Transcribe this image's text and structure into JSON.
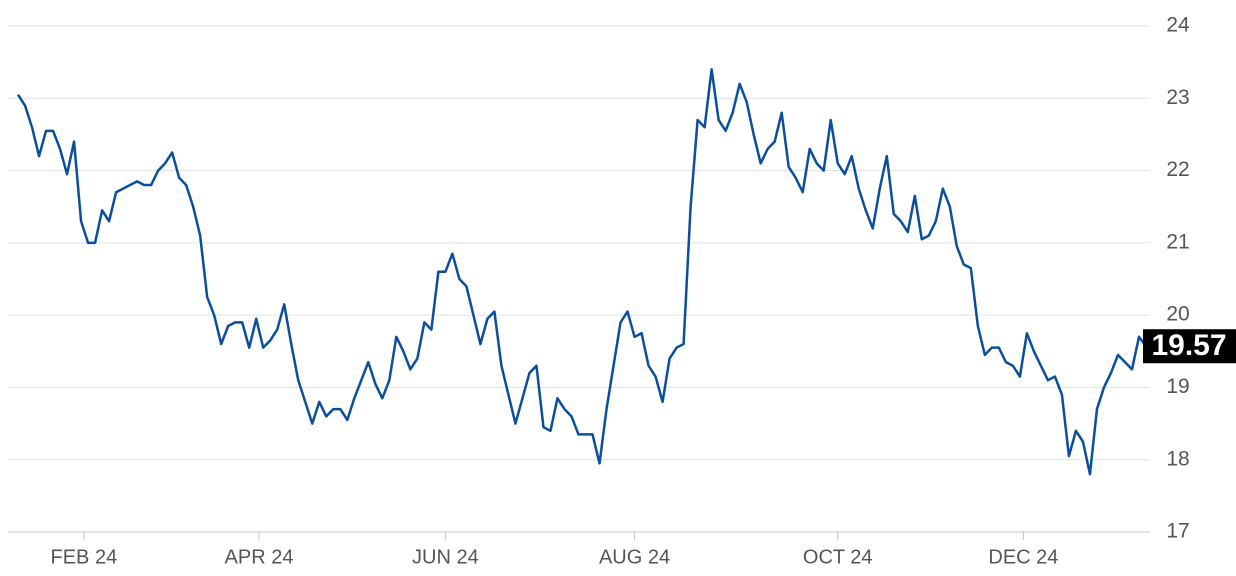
{
  "chart_data": {
    "type": "line",
    "color": "#0b4f9c",
    "grid": true,
    "values": [
      23.05,
      22.9,
      22.6,
      22.2,
      22.55,
      22.55,
      22.3,
      21.95,
      22.4,
      21.3,
      21.0,
      21.0,
      21.45,
      21.3,
      21.7,
      21.75,
      21.8,
      21.85,
      21.8,
      21.8,
      22.0,
      22.1,
      22.25,
      21.9,
      21.8,
      21.5,
      21.1,
      20.25,
      20.0,
      19.6,
      19.85,
      19.9,
      19.9,
      19.55,
      19.95,
      19.55,
      19.65,
      19.8,
      20.15,
      19.6,
      19.1,
      18.8,
      18.5,
      18.8,
      18.6,
      18.7,
      18.7,
      18.55,
      18.85,
      19.1,
      19.35,
      19.05,
      18.85,
      19.1,
      19.7,
      19.5,
      19.25,
      19.4,
      19.9,
      19.8,
      20.6,
      20.6,
      20.85,
      20.5,
      20.4,
      20.0,
      19.6,
      19.95,
      20.05,
      19.3,
      18.9,
      18.5,
      18.85,
      19.2,
      19.3,
      18.45,
      18.4,
      18.85,
      18.7,
      18.6,
      18.35,
      18.35,
      18.35,
      17.95,
      18.7,
      19.3,
      19.9,
      20.05,
      19.7,
      19.75,
      19.3,
      19.15,
      18.8,
      19.4,
      19.55,
      19.6,
      21.5,
      22.7,
      22.6,
      23.4,
      22.7,
      22.55,
      22.8,
      23.2,
      22.95,
      22.5,
      22.1,
      22.3,
      22.4,
      22.8,
      22.05,
      21.9,
      21.7,
      22.3,
      22.1,
      22.0,
      22.7,
      22.1,
      21.95,
      22.2,
      21.75,
      21.45,
      21.2,
      21.75,
      22.2,
      21.4,
      21.3,
      21.15,
      21.65,
      21.05,
      21.1,
      21.3,
      21.75,
      21.5,
      20.95,
      20.7,
      20.65,
      19.85,
      19.45,
      19.55,
      19.55,
      19.35,
      19.3,
      19.15,
      19.75,
      19.5,
      19.3,
      19.1,
      19.15,
      18.9,
      18.05,
      18.4,
      18.25,
      17.8,
      18.7,
      19.0,
      19.2,
      19.45,
      19.35,
      19.25,
      19.7,
      19.57
    ],
    "xlim": [
      0,
      161
    ],
    "xticks": [
      {
        "value": 9.4,
        "label": "FEB 24"
      },
      {
        "value": 34.4,
        "label": "APR 24"
      },
      {
        "value": 61,
        "label": "JUN 24"
      },
      {
        "value": 88,
        "label": "AUG 24"
      },
      {
        "value": 117,
        "label": "OCT 24"
      },
      {
        "value": 143.5,
        "label": "DEC 24"
      }
    ],
    "ylim": [
      17,
      24
    ],
    "yticks": [
      17,
      18,
      19,
      20,
      21,
      22,
      23,
      24
    ]
  }
}
